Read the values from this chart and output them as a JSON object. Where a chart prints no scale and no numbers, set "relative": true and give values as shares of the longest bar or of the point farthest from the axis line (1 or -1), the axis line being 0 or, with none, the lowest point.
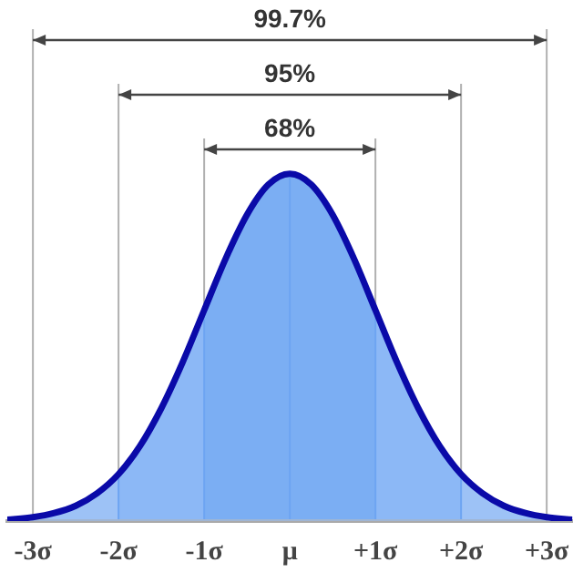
{
  "chart_data": {
    "type": "area",
    "relative": true,
    "color": "#0a0aa8",
    "x": [
      -3.3,
      -3,
      -2.75,
      -2.5,
      -2.25,
      -2,
      -1.75,
      -1.5,
      -1.25,
      -1,
      -0.75,
      -0.5,
      -0.25,
      0,
      0.25,
      0.5,
      0.75,
      1,
      1.25,
      1.5,
      1.75,
      2,
      2.25,
      2.5,
      2.75,
      3,
      3.3
    ],
    "values": [
      0.004,
      0.011,
      0.023,
      0.044,
      0.08,
      0.135,
      0.216,
      0.325,
      0.458,
      0.607,
      0.755,
      0.882,
      0.969,
      1,
      0.969,
      0.882,
      0.755,
      0.607,
      0.458,
      0.325,
      0.216,
      0.135,
      0.08,
      0.044,
      0.023,
      0.011,
      0.004
    ],
    "xlim": [
      -3.3,
      3.3
    ],
    "xticks": [
      {
        "value": -3,
        "label": "-3σ"
      },
      {
        "value": -2,
        "label": "-2σ"
      },
      {
        "value": -1,
        "label": "-1σ"
      },
      {
        "value": 0,
        "label": "μ"
      },
      {
        "value": 1,
        "label": "+1σ"
      },
      {
        "value": 2,
        "label": "+2σ"
      },
      {
        "value": 3,
        "label": "+3σ"
      }
    ],
    "bands": [
      {
        "axis": "x",
        "from": -1,
        "to": 1,
        "label": "68%",
        "color": "#5b9cf0"
      },
      {
        "axis": "x",
        "from": -2,
        "to": 2,
        "label": "95%",
        "color": "#82b2f5"
      },
      {
        "axis": "x",
        "from": -3,
        "to": 3,
        "label": "99.7%",
        "color": "#a6c8f7"
      }
    ],
    "grid": "x",
    "legend": false
  }
}
